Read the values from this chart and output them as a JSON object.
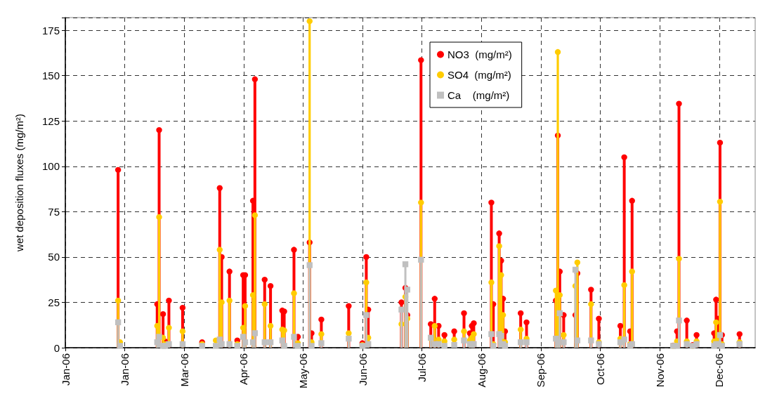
{
  "chart_data": {
    "type": "lollipop",
    "ylabel": "wet deposition fluxes (mg/m²)",
    "x": [
      "2006-01-28",
      "2006-01-29",
      "2006-02-17",
      "2006-02-18",
      "2006-02-20",
      "2006-02-21",
      "2006-02-23",
      "2006-03-02",
      "2006-03-12",
      "2006-03-19",
      "2006-03-21",
      "2006-03-22",
      "2006-03-26",
      "2006-03-30",
      "2006-04-02",
      "2006-04-03",
      "2006-04-07",
      "2006-04-08",
      "2006-04-13",
      "2006-04-16",
      "2006-04-22",
      "2006-04-23",
      "2006-04-28",
      "2006-04-30",
      "2006-05-06",
      "2006-05-07",
      "2006-05-12",
      "2006-05-26",
      "2006-06-02",
      "2006-06-04",
      "2006-06-05",
      "2006-06-22",
      "2006-06-24",
      "2006-06-25",
      "2006-07-02",
      "2006-07-07",
      "2006-07-09",
      "2006-07-11",
      "2006-07-14",
      "2006-07-19",
      "2006-07-24",
      "2006-07-27",
      "2006-07-28",
      "2006-07-29",
      "2006-08-07",
      "2006-08-08",
      "2006-08-11",
      "2006-08-12",
      "2006-08-13",
      "2006-08-14",
      "2006-08-22",
      "2006-08-25",
      "2006-09-09",
      "2006-09-10",
      "2006-09-11",
      "2006-09-13",
      "2006-09-19",
      "2006-09-20",
      "2006-09-27",
      "2006-10-01",
      "2006-10-12",
      "2006-10-14",
      "2006-10-17",
      "2006-10-18",
      "2006-11-08",
      "2006-11-10",
      "2006-11-11",
      "2006-11-15",
      "2006-11-18",
      "2006-11-20",
      "2006-11-29",
      "2006-11-30",
      "2006-12-01",
      "2006-12-02",
      "2006-12-03",
      "2006-12-12"
    ],
    "series": [
      {
        "name": "NO3  (mg/m²)",
        "color": "#ff0000",
        "marker": "circle",
        "values": [
          98,
          null,
          24,
          120,
          18.5,
          3.5,
          26,
          22,
          3,
          null,
          88,
          50,
          42,
          4,
          40,
          40,
          81,
          148,
          37.5,
          34,
          20.5,
          20,
          54,
          6,
          58,
          8,
          15.5,
          23,
          2.5,
          50,
          21,
          25,
          33,
          18,
          158.5,
          13,
          27,
          12,
          7,
          9,
          19,
          8,
          12,
          13.5,
          80,
          24,
          63,
          48,
          27,
          9,
          19,
          14,
          26,
          117,
          42,
          18,
          18,
          41,
          32,
          16,
          12,
          105,
          9,
          81,
          1.2,
          9,
          134.5,
          15,
          1.5,
          7,
          8,
          26.5,
          16,
          113,
          7,
          7.5
        ]
      },
      {
        "name": "SO4  (mg/m²)",
        "color": "#ffcc00",
        "marker": "circle",
        "values": [
          26,
          3,
          12,
          72,
          5.5,
          2,
          11,
          9,
          2,
          4,
          54,
          25,
          26,
          2,
          11,
          23,
          29,
          73,
          24,
          12,
          10,
          9.5,
          30,
          2.5,
          180,
          3,
          7.5,
          8,
          1.5,
          36,
          5.5,
          13,
          28,
          16,
          80,
          5,
          12,
          4.5,
          3.5,
          4.5,
          9,
          4,
          5.5,
          7.5,
          36,
          2,
          56,
          40,
          18,
          3,
          10,
          5,
          31.5,
          163,
          29,
          7,
          34,
          47,
          24,
          3,
          5,
          34.5,
          2,
          42,
          1,
          3.5,
          49,
          3.5,
          1,
          3.5,
          3.5,
          14,
          5.5,
          80.5,
          2,
          3
        ]
      },
      {
        "name": "Ca    (mg/m²)",
        "color": "#c0c0c0",
        "marker": "square",
        "values": [
          14,
          1,
          3,
          6,
          1,
          1,
          2,
          2,
          1,
          1,
          4.5,
          2,
          2,
          1,
          6,
          3,
          3,
          8,
          3,
          3,
          4,
          1,
          6,
          1,
          45.5,
          1,
          2.5,
          5,
          1,
          18,
          2,
          21,
          46,
          32,
          48.5,
          5.5,
          2,
          2,
          1,
          1.5,
          4,
          2,
          2,
          2,
          7.5,
          1,
          7.5,
          6.5,
          2,
          1,
          3,
          3,
          5,
          3,
          19,
          3,
          43,
          4,
          4,
          2,
          3,
          4.5,
          1,
          2,
          1,
          1,
          15,
          2,
          1,
          2,
          1,
          2,
          2,
          7,
          1,
          2
        ]
      }
    ],
    "xlim": [
      "2006-01-01",
      "2006-12-20"
    ],
    "xticks": [
      {
        "value": "2006-01-01",
        "label": "Jan-06"
      },
      {
        "value": "2006-01-31T10:00",
        "label": "Jan-06"
      },
      {
        "value": "2006-03-02T20:00",
        "label": "Mar-06"
      },
      {
        "value": "2006-04-02T06:00",
        "label": "Apr-06"
      },
      {
        "value": "2006-05-02T16:00",
        "label": "May-06"
      },
      {
        "value": "2006-06-02T02:00",
        "label": "Jun-06"
      },
      {
        "value": "2006-07-02T12:00",
        "label": "Jul-06"
      },
      {
        "value": "2006-08-01T22:00",
        "label": "Aug-06"
      },
      {
        "value": "2006-09-01T08:00",
        "label": "Sep-06"
      },
      {
        "value": "2006-10-01T18:00",
        "label": "Oct-06"
      },
      {
        "value": "2006-11-01T04:00",
        "label": "Nov-06"
      },
      {
        "value": "2006-12-01T14:00",
        "label": "Dec-06"
      }
    ],
    "ylim": [
      0,
      182
    ],
    "yticks": [
      0,
      25,
      50,
      75,
      100,
      125,
      150,
      175
    ],
    "grid": true,
    "legend": "top right"
  }
}
